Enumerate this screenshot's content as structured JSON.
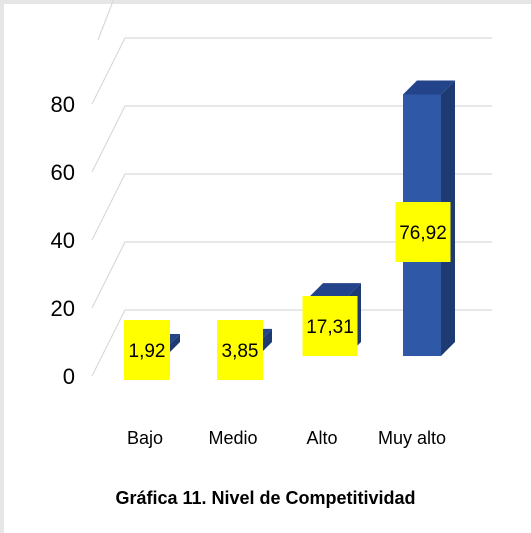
{
  "chart_data": {
    "type": "bar",
    "title": "Gráfica 11. Nivel de Competitividad",
    "categories": [
      "Bajo",
      "Medio",
      "Alto",
      "Muy alto"
    ],
    "values": [
      1.92,
      3.85,
      17.31,
      76.92
    ],
    "data_labels": [
      "1,92",
      "3,85",
      "17,31",
      "76,92"
    ],
    "yticks": [
      "0",
      "20",
      "40",
      "60",
      "80"
    ],
    "ylim": [
      0,
      80
    ],
    "grid": true,
    "legend": false,
    "colors": {
      "bar_front": "#2f58a6",
      "bar_side": "#1d3a72",
      "bar_top": "#23438a",
      "label_bg": "#ffff00",
      "grid": "#d9d9d9"
    }
  }
}
